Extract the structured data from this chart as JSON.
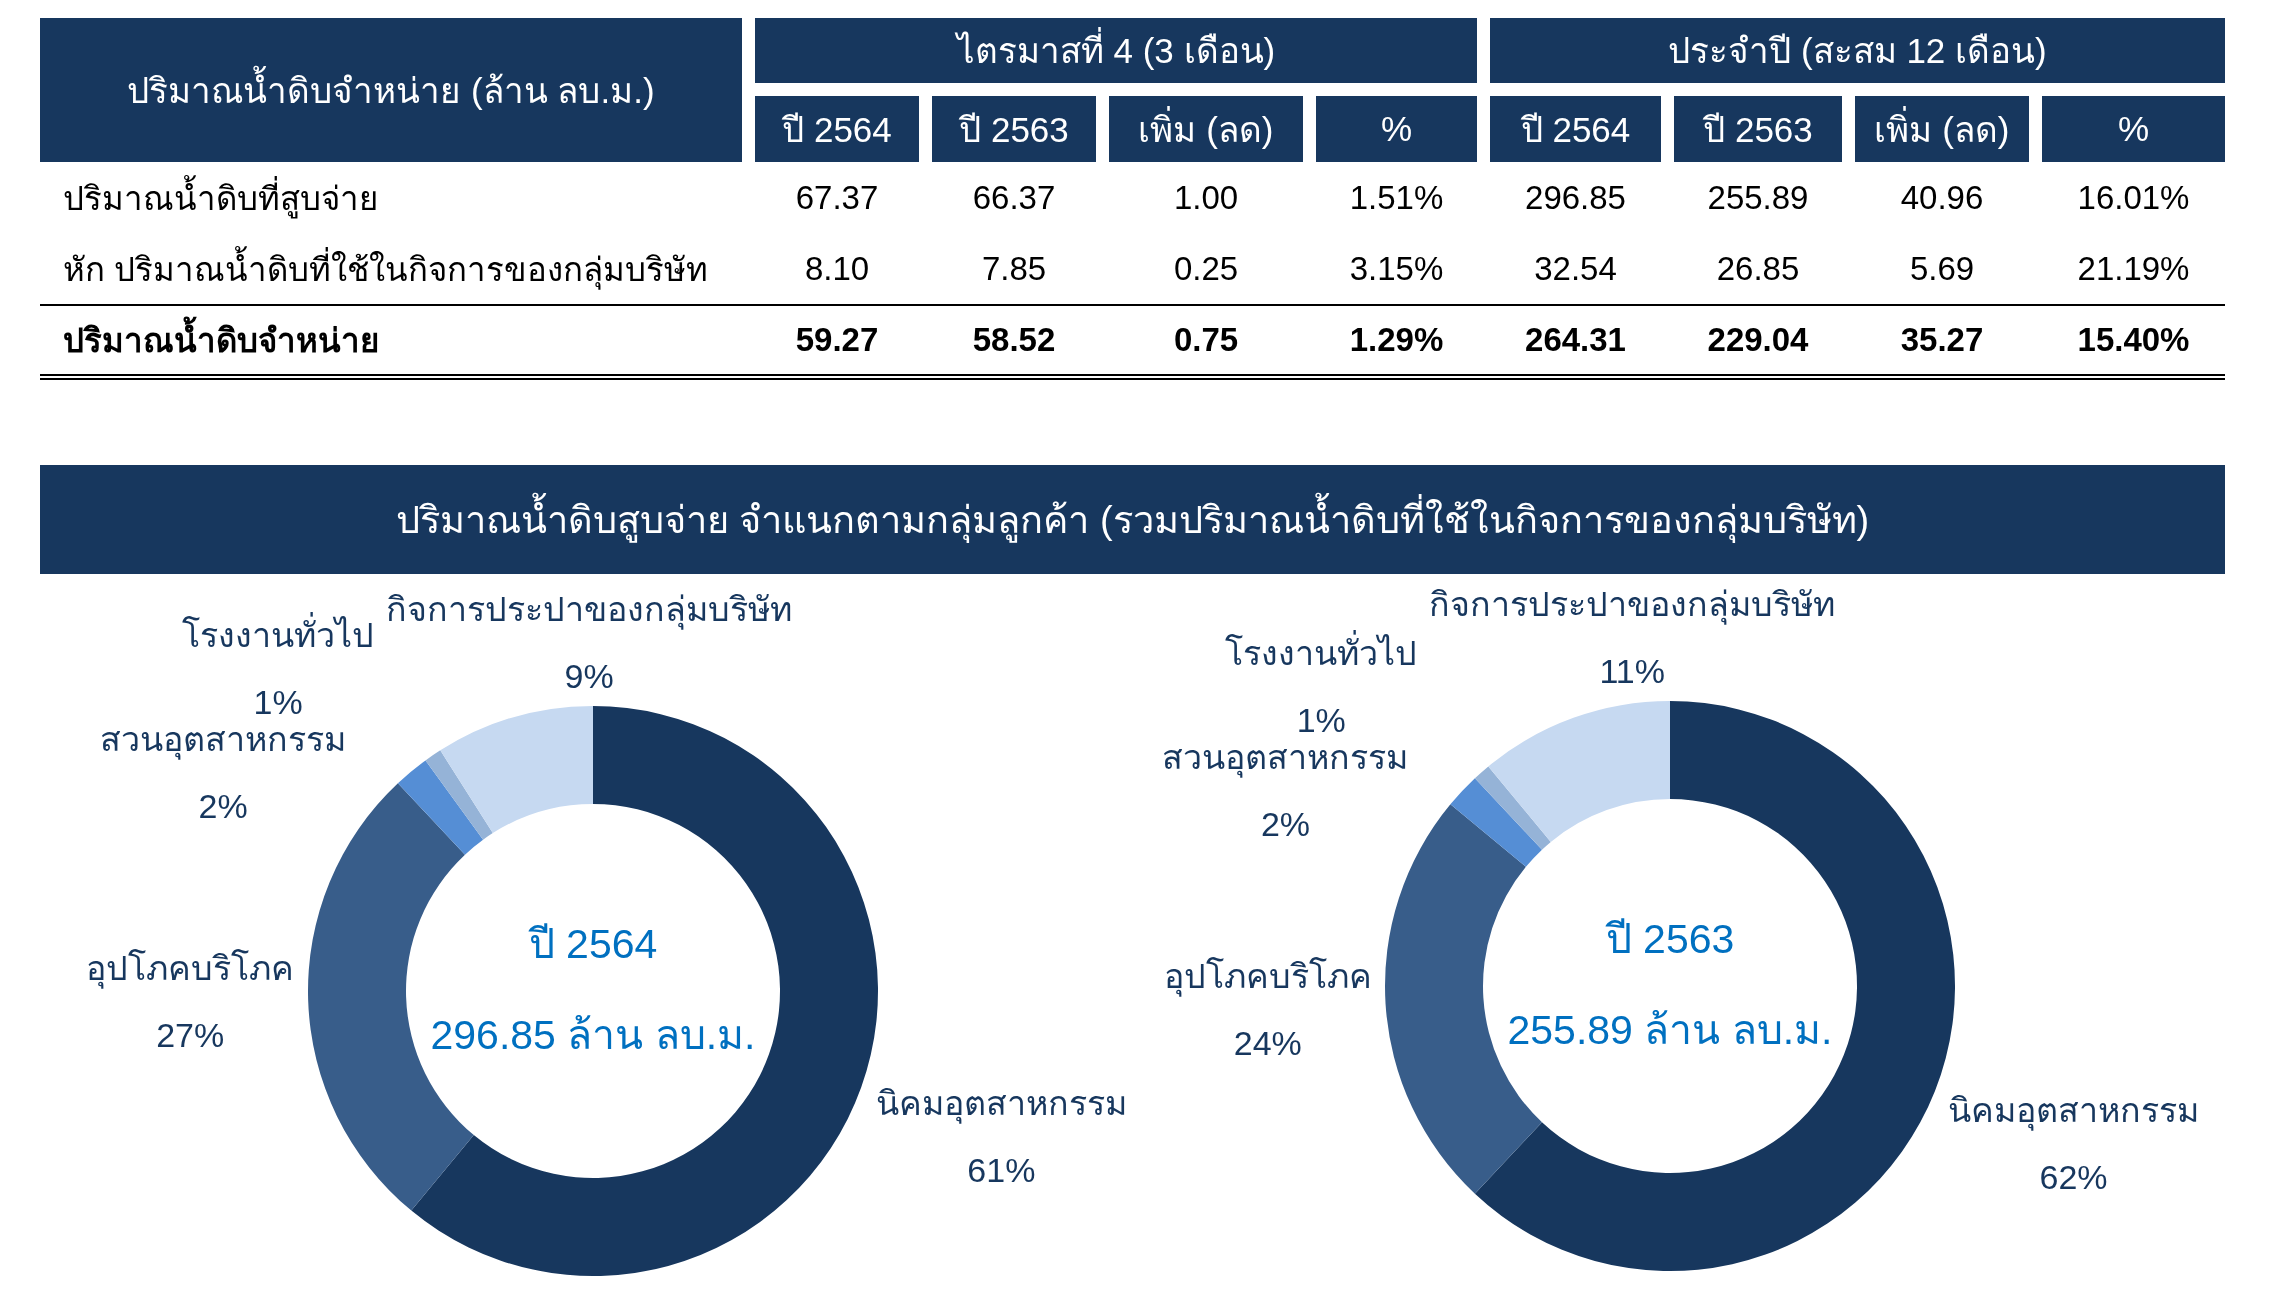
{
  "chart_data": [
    {
      "type": "other",
      "ylabel": "ปริมาณน้ำดิบจำหน่าย (ล้าน ลบ.ม.)",
      "annotations": [
        "ไตรมาสที่ 4 (3 เดือน)",
        "ประจำปี (สะสม 12 เดือน)"
      ],
      "categories": [
        "ปี 2564",
        "ปี 2563",
        "เพิ่ม (ลด)",
        "%",
        "ปี 2564",
        "ปี 2563",
        "เพิ่ม (ลด)",
        "%"
      ],
      "y_categories": [
        "ปริมาณน้ำดิบที่สูบจ่าย",
        "หัก ปริมาณน้ำดิบที่ใช้ในกิจการของกลุ่มบริษัท",
        "ปริมาณน้ำดิบจำหน่าย"
      ],
      "cell_labels": [
        [
          "67.37",
          "66.37",
          "1.00",
          "1.51%",
          "296.85",
          "255.89",
          "40.96",
          "16.01%"
        ],
        [
          "8.10",
          "7.85",
          "0.25",
          "3.15%",
          "32.54",
          "26.85",
          "5.69",
          "21.19%"
        ],
        [
          "59.27",
          "58.52",
          "0.75",
          "1.29%",
          "264.31",
          "229.04",
          "35.27",
          "15.40%"
        ]
      ]
    },
    {
      "type": "other",
      "title": "ปริมาณน้ำดิบสูบจ่าย จำแนกตามกลุ่มลูกค้า (รวมปริมาณน้ำดิบที่ใช้ในกิจการของกลุ่มบริษัท)"
    },
    {
      "type": "donut",
      "categories": [
        "นิคมอุตสาหกรรม",
        "อุปโภคบริโภค",
        "สวนอุตสาหกรรม",
        "โรงงานทั่วไป",
        "กิจการประปาของกลุ่มบริษัท"
      ],
      "values": [
        61,
        27,
        2,
        1,
        9
      ],
      "value_labels": [
        "61%",
        "27%",
        "2%",
        "1%",
        "9%"
      ],
      "colors": [
        "#17375e",
        "#385d8a",
        "#558ed5",
        "#95b3d7",
        "#c6d9f1"
      ],
      "annotations": [
        "ปี 2564",
        "296.85 ล้าน ลบ.ม."
      ]
    },
    {
      "type": "donut",
      "categories": [
        "นิคมอุตสาหกรรม",
        "อุปโภคบริโภค",
        "สวนอุตสาหกรรม",
        "โรงงานทั่วไป",
        "กิจการประปาของกลุ่มบริษัท"
      ],
      "values": [
        62,
        24,
        2,
        1,
        11
      ],
      "value_labels": [
        "62%",
        "24%",
        "2%",
        "1%",
        "11%"
      ],
      "colors": [
        "#17375e",
        "#385d8a",
        "#558ed5",
        "#95b3d7",
        "#c6d9f1"
      ],
      "annotations": [
        "ปี 2563",
        "255.89 ล้าน ลบ.ม."
      ]
    }
  ]
}
